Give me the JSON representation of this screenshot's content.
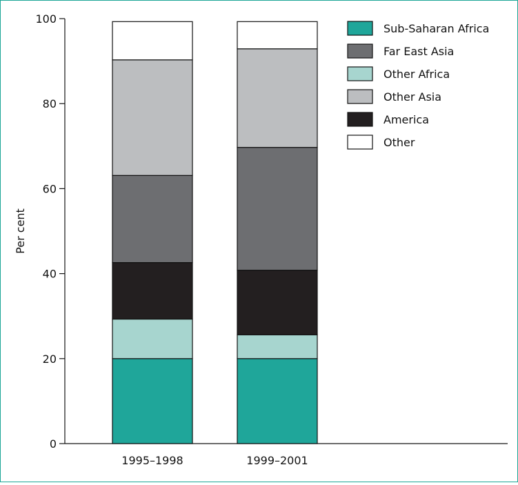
{
  "chart_data": {
    "type": "bar",
    "stacked": true,
    "title": "",
    "xlabel": "",
    "ylabel": "Per cent",
    "ylim": [
      0,
      100
    ],
    "yticks": [
      0,
      20,
      40,
      60,
      80,
      100
    ],
    "grid": false,
    "legend_position": "top-right",
    "categories": [
      "1995–1998",
      "1999–2001"
    ],
    "series": [
      {
        "name": "Sub-Saharan Africa",
        "color": "#1fa69a",
        "values": [
          20.0,
          20.0
        ]
      },
      {
        "name": "Other Africa",
        "color": "#a7d5cf",
        "values": [
          9.3,
          5.6
        ]
      },
      {
        "name": "America",
        "color": "#231f20",
        "values": [
          13.3,
          15.2
        ]
      },
      {
        "name": "Far East Asia",
        "color": "#6d6e71",
        "values": [
          20.5,
          28.9
        ]
      },
      {
        "name": "Other Asia",
        "color": "#bcbec0",
        "values": [
          27.2,
          23.2
        ]
      },
      {
        "name": "Other",
        "color": "#ffffff",
        "values": [
          9.0,
          6.4
        ]
      }
    ],
    "legend_order": [
      "Sub-Saharan Africa",
      "Far East Asia",
      "Other Africa",
      "Other Asia",
      "America",
      "Other"
    ]
  }
}
